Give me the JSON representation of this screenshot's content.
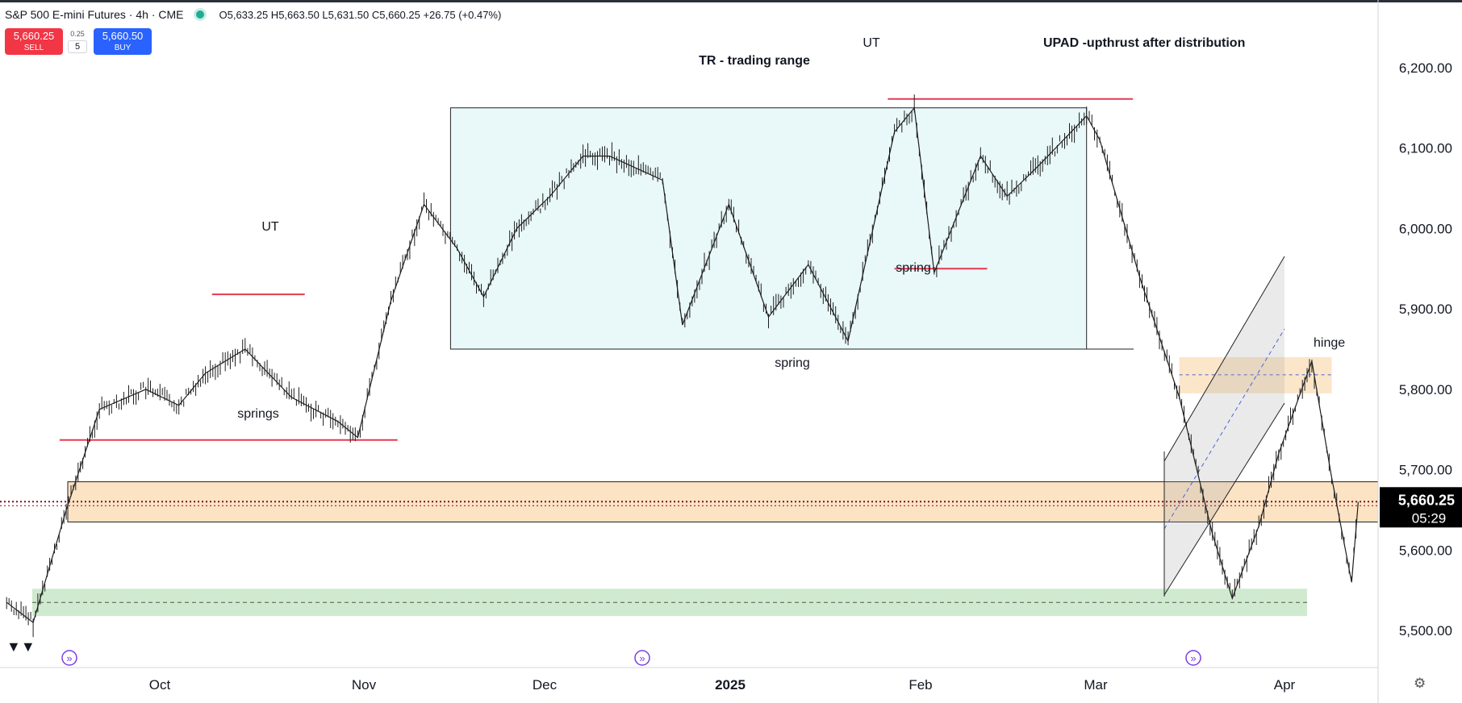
{
  "header": {
    "title": "S&P 500 E-mini Futures · 4h · CME",
    "ohlc": "O5,633.25 H5,663.50 L5,631.50 C5,660.25 +26.75 (+0.47%)"
  },
  "trade": {
    "sell_price": "5,660.25",
    "sell_label": "SELL",
    "spread": "0.25",
    "quantity": "5",
    "buy_price": "5,660.50",
    "buy_label": "BUY"
  },
  "colors": {
    "up": "#131722",
    "trading_range_fill": "#e9f8f9",
    "zone_orange": "#fbe3c4",
    "zone_green": "#cfeacf",
    "level_red": "#e53950",
    "price_label_bg": "#000000"
  },
  "icons": [
    "tradingview-logo-icon",
    "event-marker-icon",
    "settings-gear-icon"
  ],
  "chart_data": {
    "type": "line",
    "title": "S&P 500 E-mini Futures · 4h · CME",
    "x_tick_labels": [
      "Oct",
      "Nov",
      "Dec",
      "2025",
      "Feb",
      "Mar",
      "Apr"
    ],
    "y_tick_labels": [
      "6,200.00",
      "6,100.00",
      "6,000.00",
      "5,900.00",
      "5,800.00",
      "5,700.00",
      "5,600.00",
      "5,500.00"
    ],
    "ylim": [
      5450,
      6250
    ],
    "grid": false,
    "last_price": "5,660.25",
    "countdown": "05:29",
    "x_dates": [
      "2024-09-09",
      "2024-09-13",
      "2024-09-18",
      "2024-09-23",
      "2024-09-30",
      "2024-10-05",
      "2024-10-09",
      "2024-10-15",
      "2024-10-22",
      "2024-10-29",
      "2024-11-01",
      "2024-11-06",
      "2024-11-11",
      "2024-11-16",
      "2024-11-20",
      "2024-11-25",
      "2024-11-30",
      "2024-12-05",
      "2024-12-09",
      "2024-12-17",
      "2024-12-20",
      "2024-12-27",
      "2025-01-02",
      "2025-01-08",
      "2025-01-14",
      "2025-01-21",
      "2025-01-24",
      "2025-01-27",
      "2025-02-03",
      "2025-02-07",
      "2025-02-12",
      "2025-02-19",
      "2025-02-21",
      "2025-02-27",
      "2025-03-05",
      "2025-03-10",
      "2025-03-13",
      "2025-03-17",
      "2025-03-20",
      "2025-03-25",
      "2025-03-28",
      "2025-03-31",
      "2025-04-01"
    ],
    "close": [
      5535,
      5510,
      5650,
      5775,
      5800,
      5780,
      5820,
      5850,
      5790,
      5760,
      5740,
      5910,
      6030,
      5975,
      5915,
      6000,
      6040,
      6090,
      6090,
      6060,
      5880,
      6030,
      5890,
      5955,
      5860,
      6120,
      6150,
      5945,
      6090,
      6040,
      6080,
      6140,
      6110,
      5940,
      5790,
      5620,
      5540,
      5630,
      5720,
      5835,
      5690,
      5560,
      5660
    ],
    "annotations": [
      {
        "text": "UT",
        "type": "label"
      },
      {
        "text": "springs",
        "type": "label"
      },
      {
        "text": "TR - trading range",
        "type": "label"
      },
      {
        "text": "spring",
        "type": "label"
      },
      {
        "text": "UT",
        "type": "label"
      },
      {
        "text": "spring",
        "type": "label"
      },
      {
        "text": "UPAD  -upthrust after distribution",
        "type": "label"
      },
      {
        "text": "hinge",
        "type": "label"
      }
    ],
    "zones": {
      "trading_range": {
        "date_from": "2024-11-15",
        "date_to": "2025-02-19",
        "low": 5850,
        "high": 6150
      },
      "orange_band": {
        "low": 5635,
        "high": 5685
      },
      "green_band": {
        "low": 5518,
        "high": 5552
      },
      "orange_small": {
        "date_from": "2025-03-05",
        "date_to": "2025-03-28",
        "low": 5795,
        "high": 5840
      }
    },
    "levels": [
      {
        "value": 5737,
        "date_from": "2024-09-17",
        "date_to": "2024-11-07"
      },
      {
        "value": 5918,
        "date_from": "2024-10-10",
        "date_to": "2024-10-24"
      },
      {
        "value": 6161,
        "date_from": "2025-01-20",
        "date_to": "2025-02-26"
      },
      {
        "value": 5950,
        "date_from": "2025-01-21",
        "date_to": "2025-02-04"
      }
    ]
  }
}
